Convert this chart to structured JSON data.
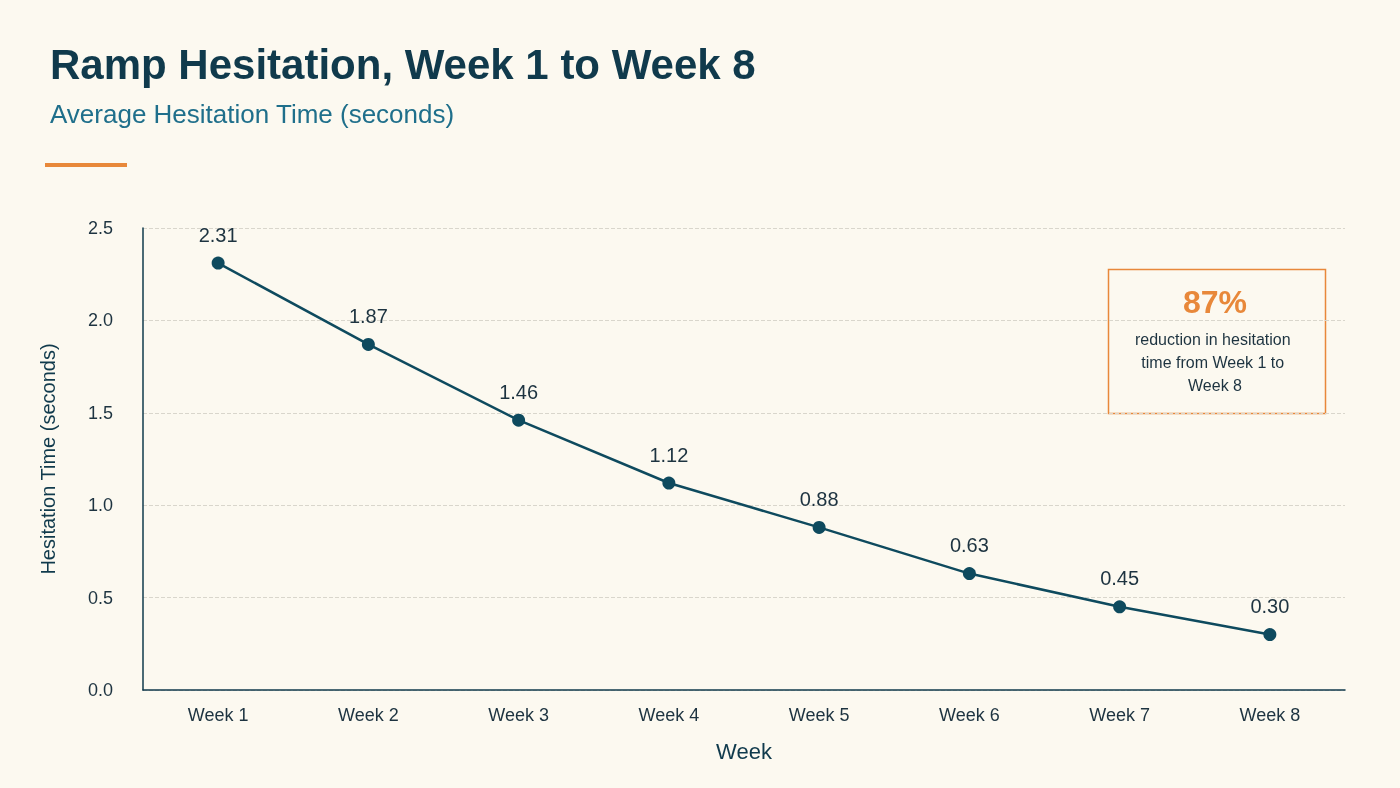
{
  "chart_data": {
    "type": "line",
    "title": "Ramp Hesitation, Week 1 to Week 8",
    "subtitle": "Average Hesitation Time (seconds)",
    "xlabel": "Week",
    "ylabel": "Hesitation Time (seconds)",
    "categories": [
      "Week 1",
      "Week 2",
      "Week 3",
      "Week 4",
      "Week 5",
      "Week 6",
      "Week 7",
      "Week 8"
    ],
    "series": [
      {
        "color": "#0e4a5e",
        "values": [
          2.31,
          1.87,
          1.46,
          1.12,
          0.88,
          0.63,
          0.45,
          0.3
        ],
        "value_labels": [
          "2.31",
          "1.87",
          "1.46",
          "1.12",
          "0.88",
          "0.63",
          "0.45",
          "0.30"
        ]
      }
    ],
    "ylim": [
      0,
      2.5
    ],
    "yticks": [
      {
        "value": 0,
        "label": "0.0"
      },
      {
        "value": 0.5,
        "label": "0.5"
      },
      {
        "value": 1,
        "label": "1.0"
      },
      {
        "value": 1.5,
        "label": "1.5"
      },
      {
        "value": 2,
        "label": "2.0"
      },
      2.5
    ],
    "grid": "y",
    "marker": "circle",
    "annotations": [
      "87%",
      "reduction in hesitation time from Week 1 to Week 8"
    ]
  }
}
